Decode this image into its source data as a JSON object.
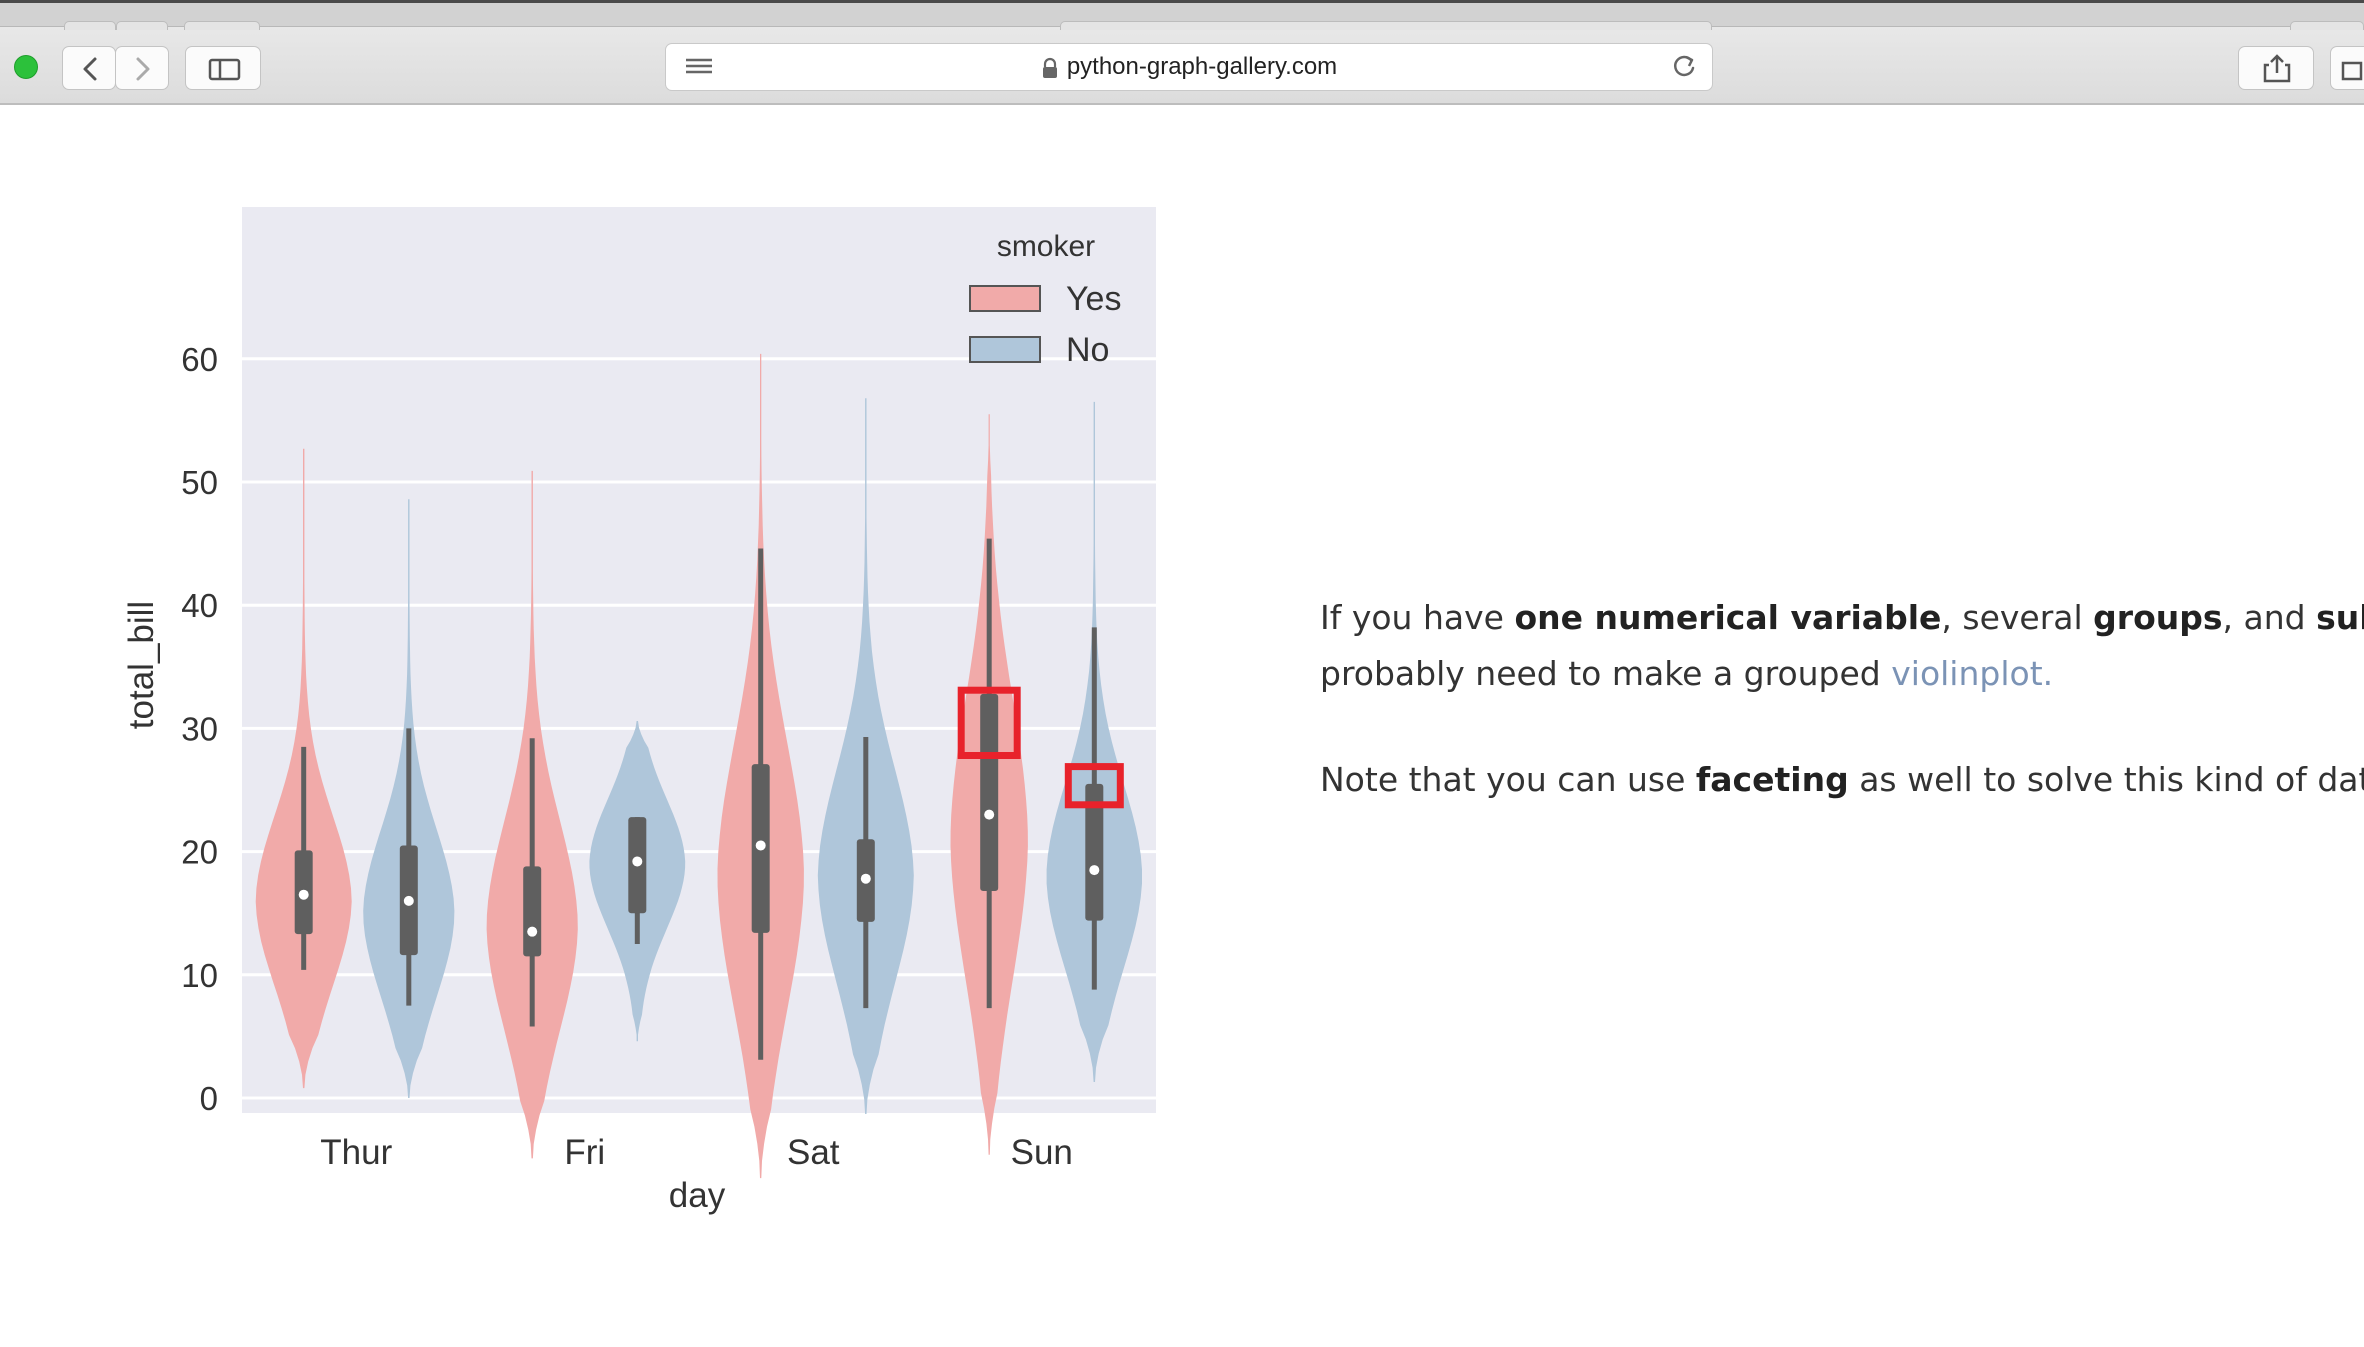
{
  "browser": {
    "url": "python-graph-gallery.com",
    "icons": [
      "close-window-icon",
      "back-icon",
      "forward-icon",
      "sidebar-icon",
      "reader-icon",
      "lock-icon",
      "reload-icon",
      "share-icon",
      "tabs-icon"
    ]
  },
  "chart_data": {
    "type": "violin",
    "title": "",
    "xlabel": "day",
    "ylabel": "total_bill",
    "categories": [
      "Thur",
      "Fri",
      "Sat",
      "Sun"
    ],
    "yticks": [
      0,
      10,
      20,
      30,
      40,
      50,
      60
    ],
    "ylim": [
      -10,
      63
    ],
    "grid": true,
    "legend": {
      "title": "smoker",
      "placement": "top-right",
      "entries": [
        {
          "label": "Yes",
          "color": "#f1aaa9"
        },
        {
          "label": "No",
          "color": "#afc6da"
        }
      ]
    },
    "series": [
      {
        "name": "Yes",
        "color": "#f1aaa9",
        "violins": [
          {
            "min": 0.8,
            "max": 52.7,
            "whisker_low": 10.4,
            "whisker_high": 28.5,
            "q1": 13.3,
            "median": 16.5,
            "q3": 20.1,
            "widest_at": 16,
            "max_halfwidth": 0.42
          },
          {
            "min": -4.9,
            "max": 50.9,
            "whisker_low": 5.8,
            "whisker_high": 29.2,
            "q1": 11.5,
            "median": 13.5,
            "q3": 18.8,
            "widest_at": 14,
            "max_halfwidth": 0.4
          },
          {
            "min": -6.5,
            "max": 60.4,
            "whisker_low": 3.1,
            "whisker_high": 44.6,
            "q1": 13.4,
            "median": 20.5,
            "q3": 27.1,
            "widest_at": 18,
            "max_halfwidth": 0.38
          },
          {
            "min": -4.6,
            "max": 55.5,
            "whisker_low": 7.3,
            "whisker_high": 45.4,
            "q1": 16.8,
            "median": 23.0,
            "q3": 32.8,
            "widest_at": 21,
            "max_halfwidth": 0.34
          }
        ]
      },
      {
        "name": "No",
        "color": "#afc6da",
        "violins": [
          {
            "min": 0.0,
            "max": 48.6,
            "whisker_low": 7.5,
            "whisker_high": 30.0,
            "q1": 11.6,
            "median": 16.0,
            "q3": 20.5,
            "widest_at": 15,
            "max_halfwidth": 0.4
          },
          {
            "min": 4.6,
            "max": 30.6,
            "whisker_low": 12.5,
            "whisker_high": 22.8,
            "q1": 15.0,
            "median": 19.2,
            "q3": 22.8,
            "widest_at": 19,
            "max_halfwidth": 0.42
          },
          {
            "min": -1.3,
            "max": 56.8,
            "whisker_low": 7.3,
            "whisker_high": 29.3,
            "q1": 14.3,
            "median": 17.8,
            "q3": 21.0,
            "widest_at": 18,
            "max_halfwidth": 0.42
          },
          {
            "min": 1.3,
            "max": 56.5,
            "whisker_low": 8.8,
            "whisker_high": 38.2,
            "q1": 14.4,
            "median": 18.5,
            "q3": 25.5,
            "widest_at": 18,
            "max_halfwidth": 0.42
          }
        ]
      }
    ],
    "annotations": [
      {
        "type": "highlight-box",
        "color": "#e8222b",
        "category": "Sun",
        "series": "Yes",
        "y_low": 27.8,
        "y_high": 33.1
      },
      {
        "type": "highlight-box",
        "color": "#e8222b",
        "category": "Sun",
        "series": "No",
        "y_low": 23.8,
        "y_high": 26.9
      }
    ]
  },
  "article": {
    "p1_line1": {
      "t1": "If you have ",
      "b1": "one numerical variable",
      "t2": ", several ",
      "b2": "groups",
      "t3": ", and ",
      "b3": "subgro"
    },
    "p1_line2": {
      "t1": "probably need to make a grouped ",
      "link": "violinplot."
    },
    "p2": {
      "t1": "Note that you can use ",
      "b1": "faceting",
      "t2": " as well to solve this kind of datase"
    }
  }
}
